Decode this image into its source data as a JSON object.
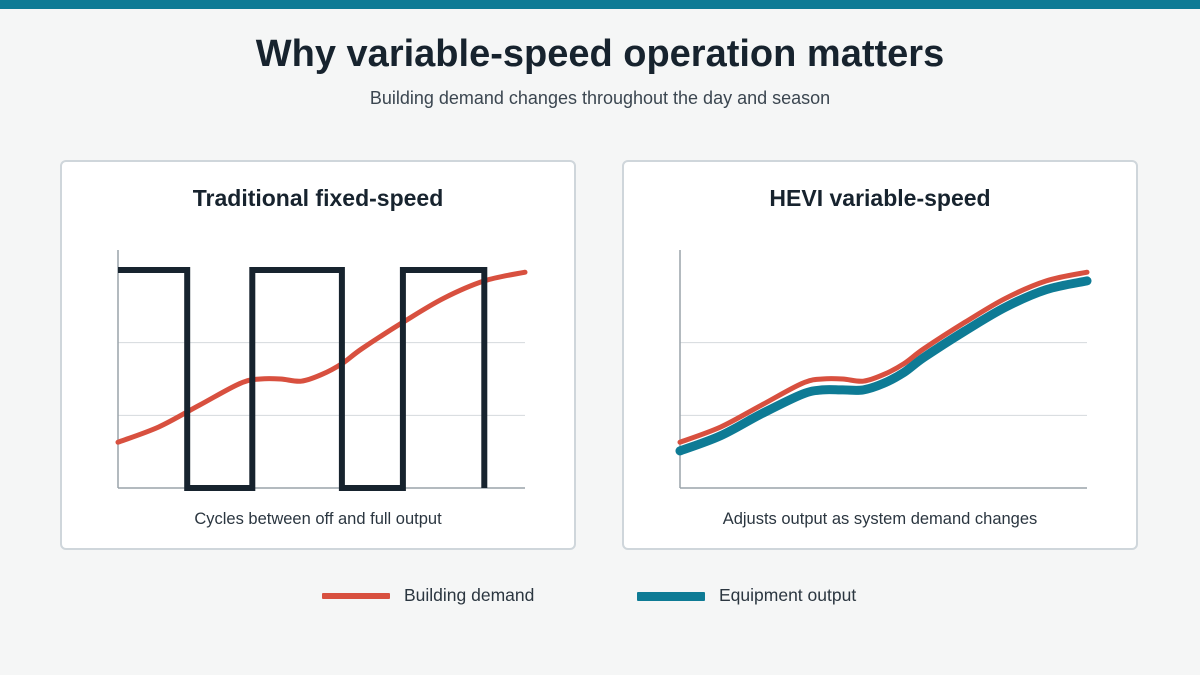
{
  "header": {
    "title": "Why variable-speed operation matters",
    "subtitle": "Building demand changes throughout the day and season"
  },
  "colors": {
    "accent": "#0e7b95",
    "demand": "#d8503f",
    "output": "#0e7b95",
    "fixed_speed": "#17232e"
  },
  "legend": {
    "demand_label": "Building demand",
    "output_label": "Equipment output"
  },
  "chart_data": [
    {
      "type": "line",
      "title": "Traditional fixed-speed",
      "caption": "Cycles between off and full output",
      "xlim": [
        0,
        10
      ],
      "ylim": [
        0,
        1
      ],
      "grid": true,
      "series": [
        {
          "name": "Building demand",
          "color": "#d8503f",
          "points": [
            [
              0,
              0.21
            ],
            [
              1,
              0.28
            ],
            [
              2,
              0.38
            ],
            [
              3,
              0.48
            ],
            [
              3.5,
              0.5
            ],
            [
              4,
              0.5
            ],
            [
              4.5,
              0.49
            ],
            [
              5,
              0.52
            ],
            [
              5.5,
              0.57
            ],
            [
              6,
              0.64
            ],
            [
              7,
              0.76
            ],
            [
              8,
              0.87
            ],
            [
              9,
              0.95
            ],
            [
              10,
              0.99
            ]
          ]
        },
        {
          "name": "Equipment output",
          "color": "#17232e",
          "step": true,
          "points": [
            [
              0,
              1
            ],
            [
              1.7,
              1
            ],
            [
              1.7,
              0
            ],
            [
              3.3,
              0
            ],
            [
              3.3,
              1
            ],
            [
              5.5,
              1
            ],
            [
              5.5,
              0
            ],
            [
              7,
              0
            ],
            [
              7,
              1
            ],
            [
              9,
              1
            ],
            [
              9,
              0
            ]
          ]
        }
      ]
    },
    {
      "type": "line",
      "title": "HEVI variable-speed",
      "caption": "Adjusts output as system demand changes",
      "xlim": [
        0,
        10
      ],
      "ylim": [
        0,
        1
      ],
      "grid": true,
      "series": [
        {
          "name": "Equipment output",
          "color": "#0e7b95",
          "points": [
            [
              0,
              0.17
            ],
            [
              1,
              0.24
            ],
            [
              2,
              0.34
            ],
            [
              3,
              0.43
            ],
            [
              3.5,
              0.45
            ],
            [
              4,
              0.45
            ],
            [
              4.5,
              0.45
            ],
            [
              5,
              0.48
            ],
            [
              5.5,
              0.53
            ],
            [
              6,
              0.6
            ],
            [
              7,
              0.72
            ],
            [
              8,
              0.83
            ],
            [
              9,
              0.91
            ],
            [
              10,
              0.95
            ]
          ]
        },
        {
          "name": "Building demand",
          "color": "#d8503f",
          "points": [
            [
              0,
              0.21
            ],
            [
              1,
              0.28
            ],
            [
              2,
              0.38
            ],
            [
              3,
              0.48
            ],
            [
              3.5,
              0.5
            ],
            [
              4,
              0.5
            ],
            [
              4.5,
              0.49
            ],
            [
              5,
              0.52
            ],
            [
              5.5,
              0.57
            ],
            [
              6,
              0.64
            ],
            [
              7,
              0.76
            ],
            [
              8,
              0.87
            ],
            [
              9,
              0.95
            ],
            [
              10,
              0.99
            ]
          ]
        }
      ]
    }
  ]
}
